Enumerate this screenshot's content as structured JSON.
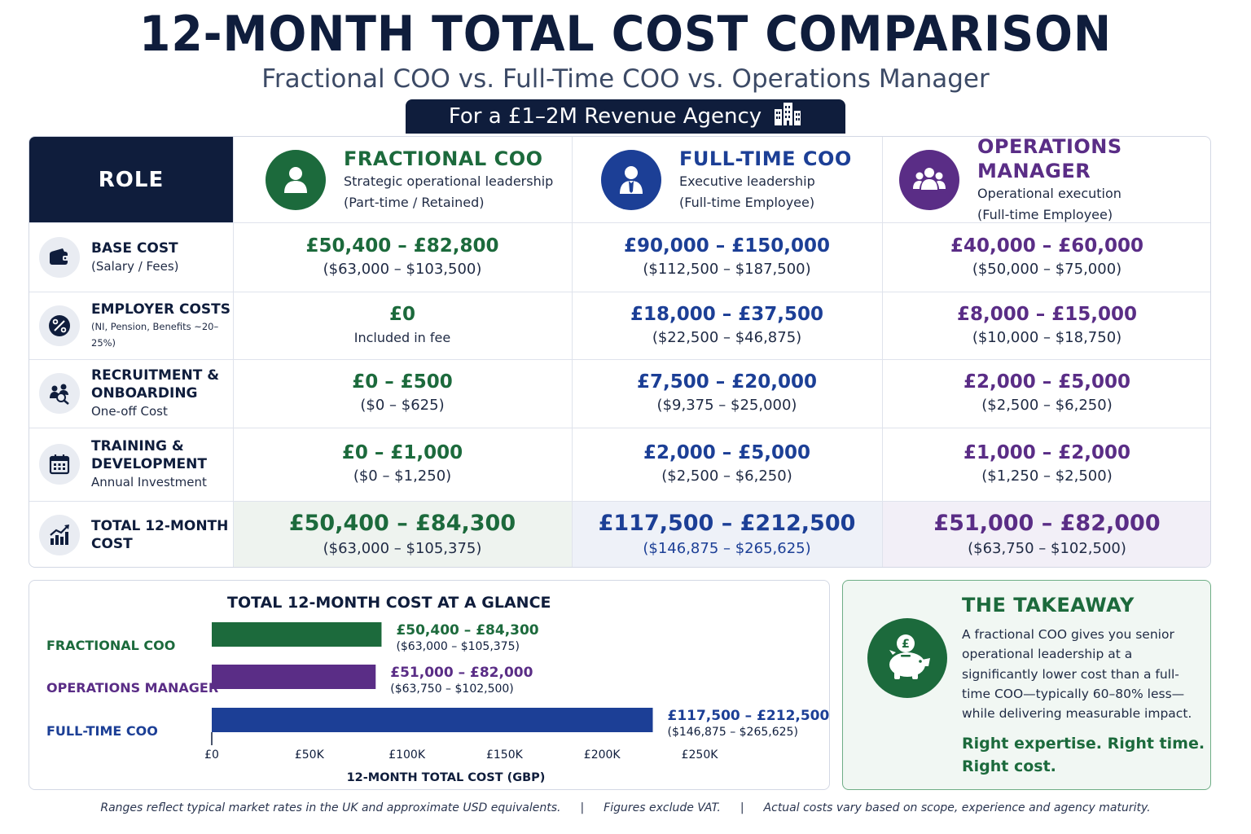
{
  "title": "12-MONTH TOTAL COST COMPARISON",
  "subtitle": "Fractional COO vs. Full-Time COO vs. Operations Manager",
  "context_label": "For a £1–2M Revenue Agency",
  "table": {
    "role_header": "ROLE",
    "columns": [
      {
        "name": "FRACTIONAL COO",
        "desc1": "Strategic operational leadership",
        "desc2": "(Part-time / Retained)",
        "icon": "person-icon",
        "color": "#1c6a3c"
      },
      {
        "name": "FULL-TIME COO",
        "desc1": "Executive leadership",
        "desc2": "(Full-time Employee)",
        "icon": "executive-icon",
        "color": "#1c3f96"
      },
      {
        "name": "OPERATIONS MANAGER",
        "desc1": "Operational execution",
        "desc2": "(Full-time Employee)",
        "icon": "team-icon",
        "color": "#5a2d86"
      }
    ],
    "rows": [
      {
        "label": "BASE COST",
        "label2": "",
        "sub": "(Salary / Fees)",
        "icon": "wallet-icon",
        "values": [
          {
            "gbp": "£50,400 – £82,800",
            "usd": "($63,000 – $103,500)"
          },
          {
            "gbp": "£90,000 – £150,000",
            "usd": "($112,500 – $187,500)"
          },
          {
            "gbp": "£40,000 – £60,000",
            "usd": "($50,000 – $75,000)"
          }
        ]
      },
      {
        "label": "EMPLOYER COSTS",
        "label2": "",
        "sub": "(NI, Pension, Benefits ~20–25%)",
        "icon": "percent-icon",
        "values": [
          {
            "gbp": "£0",
            "usd": "Included in fee"
          },
          {
            "gbp": "£18,000 – £37,500",
            "usd": "($22,500 – $46,875)"
          },
          {
            "gbp": "£8,000 – £15,000",
            "usd": "($10,000 – $18,750)"
          }
        ]
      },
      {
        "label": "RECRUITMENT &",
        "label2": "ONBOARDING",
        "sub": "One-off Cost",
        "icon": "recruitment-icon",
        "values": [
          {
            "gbp": "£0 – £500",
            "usd": "($0 – $625)"
          },
          {
            "gbp": "£7,500 – £20,000",
            "usd": "($9,375 – $25,000)"
          },
          {
            "gbp": "£2,000 – £5,000",
            "usd": "($2,500 – $6,250)"
          }
        ]
      },
      {
        "label": "TRAINING &",
        "label2": "DEVELOPMENT",
        "sub": "Annual Investment",
        "icon": "calendar-icon",
        "values": [
          {
            "gbp": "£0 – £1,000",
            "usd": "($0 – $1,250)"
          },
          {
            "gbp": "£2,000 – £5,000",
            "usd": "($2,500 – $6,250)"
          },
          {
            "gbp": "£1,000 – £2,000",
            "usd": "($1,250 – $2,500)"
          }
        ]
      },
      {
        "label": "TOTAL 12-MONTH COST",
        "label2": "",
        "sub": "",
        "icon": "growth-chart-icon",
        "values": [
          {
            "gbp": "£50,400 – £84,300",
            "usd": "($63,000 – $105,375)"
          },
          {
            "gbp": "£117,500 – £212,500",
            "usd": "($146,875 – $265,625)"
          },
          {
            "gbp": "£51,000 – £82,000",
            "usd": "($63,750 – $102,500)"
          }
        ]
      }
    ]
  },
  "chart_data": {
    "type": "bar",
    "orientation": "horizontal",
    "title": "TOTAL 12-MONTH COST AT A GLANCE",
    "xlabel": "12-MONTH TOTAL COST (GBP)",
    "xlim": [
      0,
      250000
    ],
    "x_ticks": [
      0,
      50000,
      100000,
      150000,
      200000,
      250000
    ],
    "x_tick_labels": [
      "£0",
      "£50K",
      "£100K",
      "£150K",
      "£200K",
      "£250K"
    ],
    "grid": false,
    "categories": [
      "FRACTIONAL COO",
      "OPERATIONS MANAGER",
      "FULL-TIME COO"
    ],
    "values": [
      87000,
      84000,
      226000
    ],
    "colors": [
      "#1c6a3c",
      "#5a2d86",
      "#1c3f96"
    ],
    "labels_gbp": [
      "£50,400 – £84,300",
      "£51,000 – £82,000",
      "£117,500 – £212,500"
    ],
    "labels_usd": [
      "($63,000 – $105,375)",
      "($63,750 – $102,500)",
      "($146,875 – $265,625)"
    ]
  },
  "takeaway": {
    "title": "THE TAKEAWAY",
    "body": "A fractional COO gives you senior operational leadership at a significantly lower cost than a full-time COO—typically 60–80% less—while delivering measurable impact.",
    "tagline": "Right expertise. Right time. Right cost.",
    "icon": "piggy-bank-pound-icon"
  },
  "footer": {
    "note1": "Ranges reflect typical market rates in the UK and approximate USD equivalents.",
    "note2": "Figures exclude VAT.",
    "note3": "Actual costs vary based on scope, experience and agency maturity.",
    "separator": "|"
  }
}
